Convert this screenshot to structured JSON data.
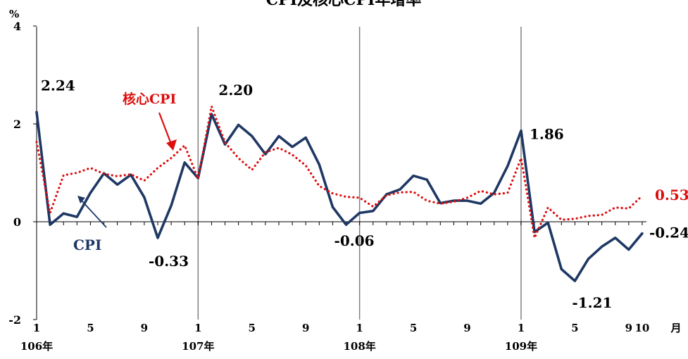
{
  "chart_data": {
    "type": "line",
    "title": "CPI及核心CPI年增率",
    "ylabel": "%",
    "xlabel": "月",
    "ylim": [
      -2,
      4
    ],
    "y_ticks": [
      "4",
      "2",
      "0",
      "-2"
    ],
    "x_month_ticks": [
      {
        "label": "1",
        "index": 0
      },
      {
        "label": "5",
        "index": 4
      },
      {
        "label": "9",
        "index": 8
      },
      {
        "label": "1",
        "index": 12
      },
      {
        "label": "5",
        "index": 16
      },
      {
        "label": "9",
        "index": 20
      },
      {
        "label": "1",
        "index": 24
      },
      {
        "label": "5",
        "index": 28
      },
      {
        "label": "9",
        "index": 32
      },
      {
        "label": "1",
        "index": 36
      },
      {
        "label": "5",
        "index": 40
      },
      {
        "label": "9",
        "index": 44
      },
      {
        "label": "10",
        "index": 45
      }
    ],
    "year_labels": [
      {
        "label": "106年",
        "index": 0
      },
      {
        "label": "107年",
        "index": 12
      },
      {
        "label": "108年",
        "index": 24
      },
      {
        "label": "109年",
        "index": 36
      }
    ],
    "year_dividers": [
      12,
      24,
      36
    ],
    "colors": {
      "cpi": "#1f3864",
      "core": "#dd0d0d",
      "grid": "#808080",
      "axis": "#000000"
    },
    "series": [
      {
        "name": "CPI",
        "style": "solid",
        "values": [
          2.24,
          -0.06,
          0.17,
          0.1,
          0.59,
          0.99,
          0.76,
          0.96,
          0.5,
          -0.33,
          0.33,
          1.21,
          0.89,
          2.2,
          1.58,
          1.98,
          1.75,
          1.38,
          1.75,
          1.53,
          1.72,
          1.17,
          0.3,
          -0.06,
          0.18,
          0.22,
          0.56,
          0.66,
          0.94,
          0.86,
          0.38,
          0.43,
          0.43,
          0.37,
          0.59,
          1.14,
          1.86,
          -0.21,
          -0.02,
          -0.97,
          -1.21,
          -0.76,
          -0.51,
          -0.33,
          -0.57,
          -0.24
        ]
      },
      {
        "name": "核心CPI",
        "style": "dotted",
        "values": [
          1.63,
          0.18,
          0.95,
          1.0,
          1.1,
          0.98,
          0.93,
          0.97,
          0.84,
          1.1,
          1.3,
          1.56,
          0.88,
          2.36,
          1.62,
          1.3,
          1.06,
          1.42,
          1.51,
          1.37,
          1.15,
          0.73,
          0.58,
          0.51,
          0.49,
          0.31,
          0.54,
          0.6,
          0.61,
          0.43,
          0.37,
          0.41,
          0.49,
          0.63,
          0.56,
          0.59,
          1.3,
          -0.33,
          0.29,
          0.04,
          0.06,
          0.12,
          0.14,
          0.29,
          0.27,
          0.53
        ]
      }
    ],
    "annotations": [
      {
        "text": "2.24",
        "series": 0,
        "index": 0,
        "color": "#000000"
      },
      {
        "text": "2.20",
        "series": 0,
        "index": 13,
        "color": "#000000"
      },
      {
        "text": "-0.33",
        "series": 0,
        "index": 9,
        "color": "#000000"
      },
      {
        "text": "-0.06",
        "series": 0,
        "index": 23,
        "color": "#000000"
      },
      {
        "text": "1.86",
        "series": 0,
        "index": 36,
        "color": "#000000"
      },
      {
        "text": "-1.21",
        "series": 0,
        "index": 40,
        "color": "#000000"
      },
      {
        "text": "-0.24",
        "series": 0,
        "index": 45,
        "color": "#000000"
      },
      {
        "text": "0.53",
        "series": 1,
        "index": 45,
        "color": "#dd0d0d"
      }
    ],
    "callouts": [
      {
        "text": "核心CPI",
        "series": 1,
        "color": "#dd0d0d"
      },
      {
        "text": "CPI",
        "series": 0,
        "color": "#1f3864"
      }
    ]
  }
}
